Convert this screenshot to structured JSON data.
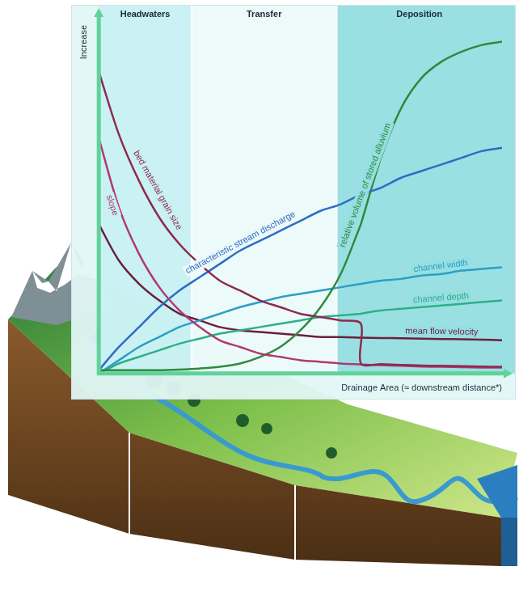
{
  "chart_data": {
    "type": "line",
    "xlabel": "Drainage Area (≈ downstream distance*)",
    "ylabel": "Increase",
    "xlim": [
      0,
      100
    ],
    "ylim": [
      0,
      105
    ],
    "tick_labels": false,
    "grid": false,
    "zones": [
      {
        "label": "Headwaters",
        "x": [
          0,
          23
        ]
      },
      {
        "label": "Transfer",
        "x": [
          23,
          59
        ]
      },
      {
        "label": "Deposition",
        "x": [
          59,
          100
        ]
      }
    ],
    "x": [
      0,
      5,
      10,
      15,
      20,
      25,
      30,
      35,
      40,
      45,
      50,
      55,
      60,
      65,
      65,
      70,
      75,
      80,
      85,
      90,
      95,
      100
    ],
    "series": [
      {
        "name": "bed material grain size",
        "color": "#8c2b4e",
        "values": [
          91,
          72,
          58,
          47,
          39,
          33,
          28,
          25,
          22,
          20,
          18,
          17,
          16,
          15,
          3,
          2.8,
          2.6,
          2.4,
          2.3,
          2.2,
          2.1,
          2
        ]
      },
      {
        "name": "slope",
        "color": "#b03a6e",
        "values": [
          71,
          50,
          36,
          26,
          19,
          14,
          10,
          8,
          6,
          5,
          4,
          3.5,
          3,
          2.7,
          2.7,
          2.5,
          2.3,
          2.1,
          2,
          1.9,
          1.8,
          1.8
        ]
      },
      {
        "name": "characteristic stream discharge",
        "color": "#2e6dc4",
        "values": [
          1,
          8,
          14,
          20,
          25,
          29,
          33,
          37,
          40,
          43,
          46,
          49,
          51,
          54,
          54,
          56,
          59,
          61,
          63,
          65,
          67,
          68
        ]
      },
      {
        "name": "relative volume of stored alluvium",
        "color": "#2f8a3c",
        "values": [
          1,
          1,
          1,
          1,
          1.2,
          1.5,
          2,
          3,
          5,
          8,
          13,
          20,
          30,
          45,
          45,
          65,
          80,
          89,
          94,
          97,
          99,
          100
        ]
      },
      {
        "name": "channel width",
        "color": "#2a9fc6",
        "values": [
          0,
          4,
          8,
          11,
          14,
          16,
          18,
          20,
          21.5,
          23,
          24,
          25,
          26,
          27,
          27,
          28,
          28.5,
          29.5,
          30,
          31,
          31.5,
          32
        ]
      },
      {
        "name": "channel depth",
        "color": "#2fae8a",
        "values": [
          0,
          3,
          5,
          7,
          9,
          10.5,
          12,
          13,
          14,
          15,
          16,
          17,
          17.5,
          18,
          18,
          19,
          19.5,
          20,
          20.5,
          21,
          21.5,
          22
        ]
      },
      {
        "name": "mean flow velocity",
        "color": "#6b1f3c",
        "values": [
          45,
          34,
          27,
          22,
          18,
          16,
          14,
          13,
          12.5,
          12,
          11.5,
          11,
          11,
          10.8,
          10.8,
          10.7,
          10.6,
          10.5,
          10.4,
          10.3,
          10.2,
          10
        ]
      }
    ]
  }
}
